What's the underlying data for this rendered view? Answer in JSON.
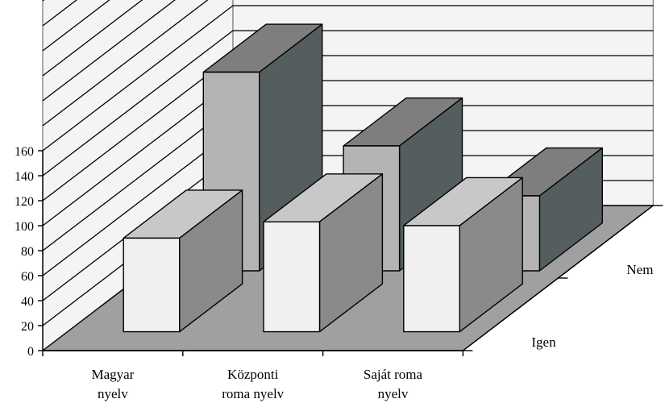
{
  "chart_data": {
    "type": "bar",
    "style": "3d-clustered-column",
    "categories": [
      "Magyar nyelv",
      "Központi roma nyelv",
      "Saját roma nyelv"
    ],
    "category_lines": [
      [
        "Magyar",
        "nyelv"
      ],
      [
        "Központi",
        "roma nyelv"
      ],
      [
        "Saját roma",
        "nyelv"
      ]
    ],
    "series": [
      {
        "name": "Igen",
        "values": [
          75,
          88,
          85
        ]
      },
      {
        "name": "Nem",
        "values": [
          159,
          100,
          60
        ]
      }
    ],
    "ylim": [
      0,
      160
    ],
    "yticks": [
      0,
      20,
      40,
      60,
      80,
      100,
      120,
      140,
      160
    ],
    "ygrid_values": [
      180,
      200,
      220,
      240,
      260,
      280,
      300,
      320
    ],
    "grid": true,
    "title": "",
    "xlabel": "",
    "ylabel": ""
  },
  "colors": {
    "floor": "#a0a0a0",
    "wall": "#f4f4f4",
    "igen_front": "#f0f0f0",
    "igen_top": "#c8c8c8",
    "igen_side": "#8a8a8a",
    "nem_front": "#b4b4b4",
    "nem_top": "#7e7e7e",
    "nem_side": "#555e5e"
  }
}
